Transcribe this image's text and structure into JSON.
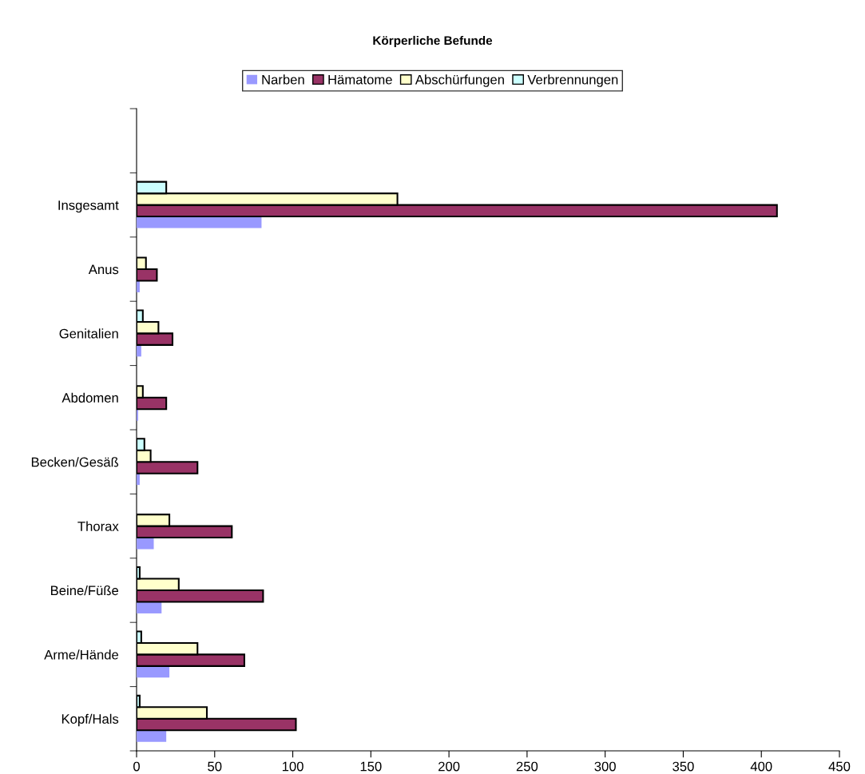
{
  "chart_data": {
    "type": "bar",
    "orientation": "horizontal",
    "title": "Körperliche Befunde",
    "categories": [
      null,
      "Insgesamt",
      "Anus",
      "Genitalien",
      "Abdomen",
      "Becken/Gesäß",
      "Thorax",
      "Beine/Füße",
      "Arme/Hände",
      "Kopf/Hals"
    ],
    "series": [
      {
        "name": "Narben",
        "color": "#9999ff",
        "values": [
          null,
          80,
          2,
          3,
          1,
          2,
          11,
          16,
          21,
          19
        ]
      },
      {
        "name": "Hämatome",
        "color": "#993366",
        "values": [
          null,
          410,
          13,
          23,
          19,
          39,
          61,
          81,
          69,
          102
        ]
      },
      {
        "name": "Abschürfungen",
        "color": "#ffffcc",
        "values": [
          null,
          167,
          6,
          14,
          4,
          9,
          21,
          27,
          39,
          45
        ]
      },
      {
        "name": "Verbrennungen",
        "color": "#ccffff",
        "values": [
          null,
          19,
          null,
          4,
          null,
          5,
          null,
          2,
          3,
          2
        ]
      }
    ],
    "xlim": [
      0,
      450
    ],
    "xticks": [
      0,
      50,
      100,
      150,
      200,
      250,
      300,
      350,
      400,
      450
    ],
    "grid": false,
    "legend": "top"
  }
}
